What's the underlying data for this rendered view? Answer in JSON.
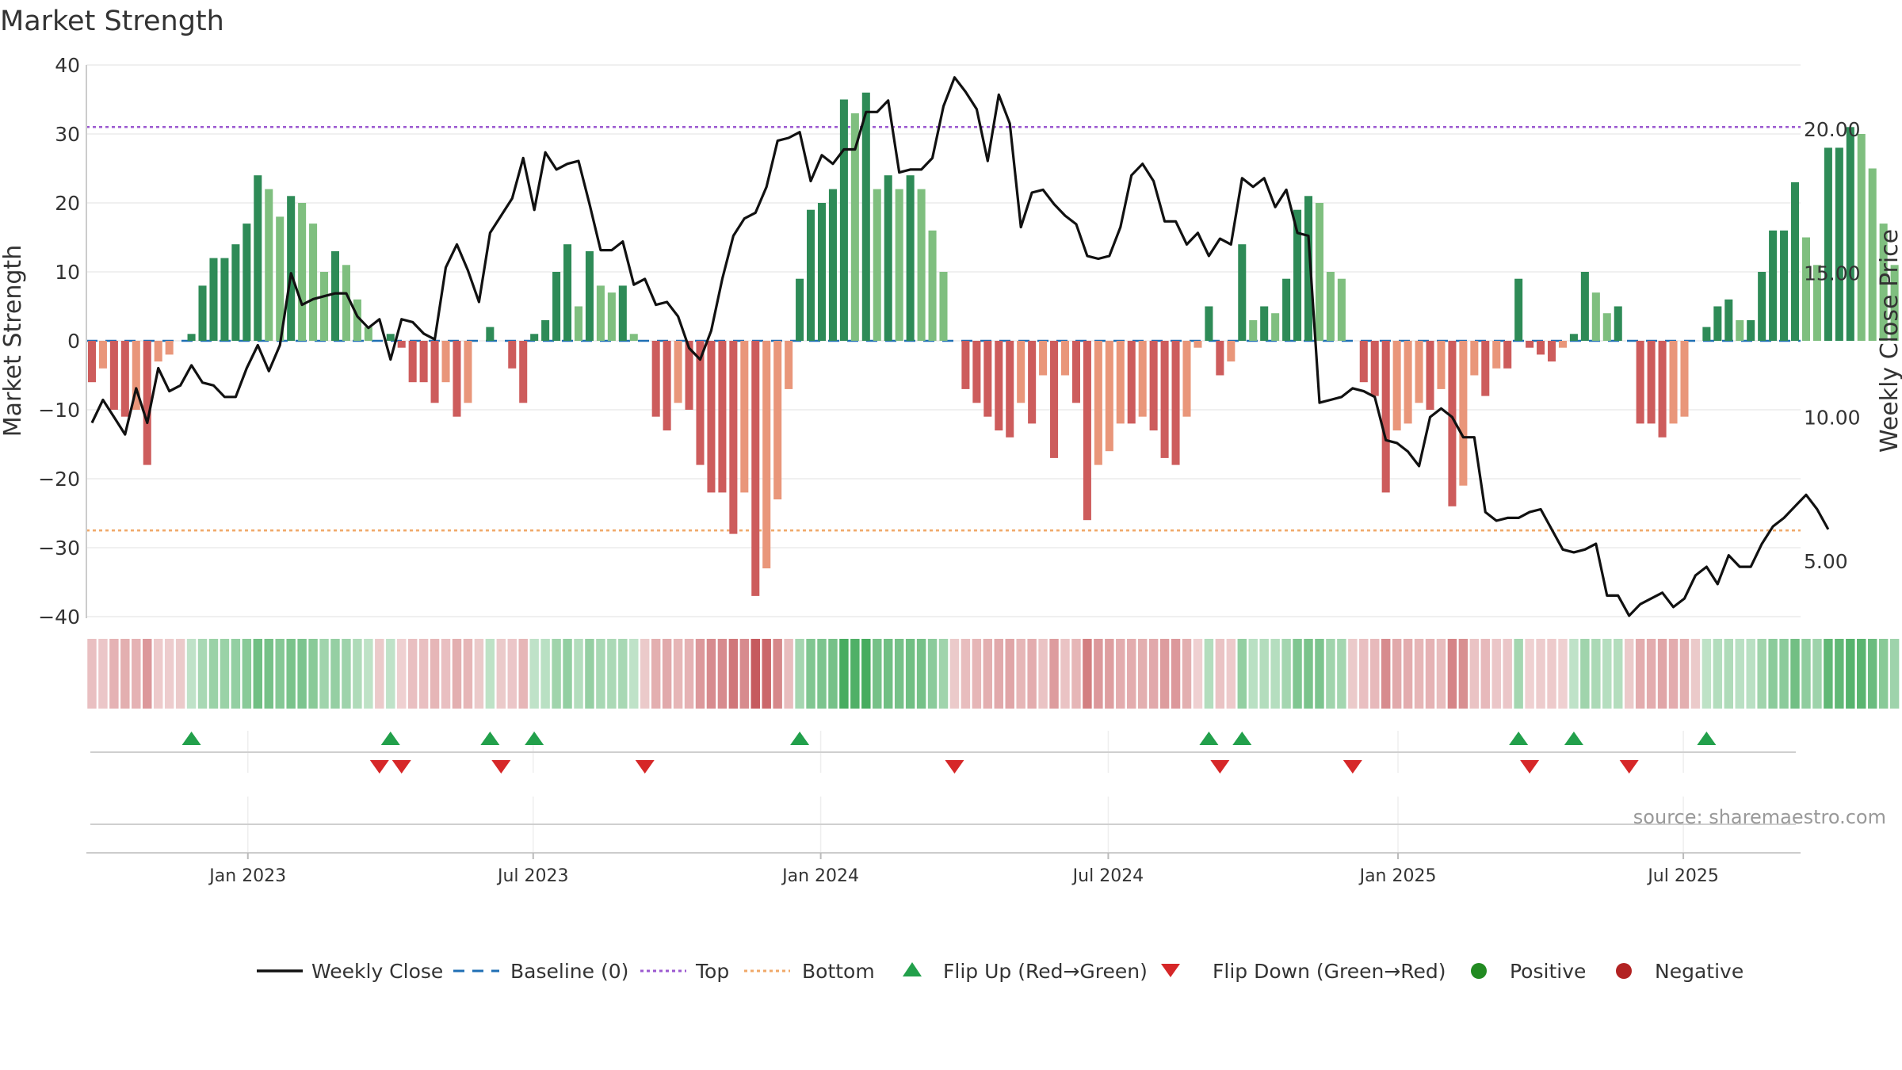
{
  "chart_data": {
    "type": "bar",
    "title": "Market Strength",
    "ylabel": "Market Strength",
    "ylabel_right": "Weekly Close Price",
    "ylim": [
      -40,
      40
    ],
    "ylim_right": [
      2.6,
      21.6
    ],
    "yticks": [
      "40",
      "30",
      "20",
      "10",
      "0",
      "−10",
      "−20",
      "−30",
      "−40"
    ],
    "yticks_right": [
      "20.00",
      "15.00",
      "10.00",
      "5.00"
    ],
    "x_range_weeks": [
      0,
      155
    ],
    "x_ticks": [
      {
        "label": "Jan 2023",
        "week": 14.6
      },
      {
        "label": "Jul 2023",
        "week": 40.4
      },
      {
        "label": "Jan 2024",
        "week": 66.4
      },
      {
        "label": "Jul 2024",
        "week": 92.4
      },
      {
        "label": "Jan 2025",
        "week": 118.6
      },
      {
        "label": "Jul 2025",
        "week": 144.4
      }
    ],
    "top_line": 31,
    "bottom_line": -27.5,
    "baseline": 0,
    "strength": [
      -6,
      -4,
      -10,
      -11,
      -10,
      -18,
      -3,
      -2,
      0,
      1,
      8,
      12,
      12,
      14,
      17,
      24,
      22,
      18,
      21,
      20,
      17,
      10,
      13,
      11,
      6,
      2,
      0,
      1,
      -1,
      -6,
      -6,
      -9,
      -6,
      -11,
      -9,
      0,
      2,
      0,
      -4,
      -9,
      1,
      3,
      10,
      14,
      5,
      13,
      8,
      7,
      8,
      1,
      0,
      -11,
      -13,
      -9,
      -10,
      -18,
      -22,
      -22,
      -28,
      -22,
      -37,
      -33,
      -23,
      -7,
      9,
      19,
      20,
      22,
      35,
      33,
      36,
      22,
      24,
      22,
      24,
      22,
      16,
      10,
      0,
      -7,
      -9,
      -11,
      -13,
      -14,
      -9,
      -12,
      -5,
      -17,
      -5,
      -9,
      -26,
      -18,
      -16,
      -12,
      -12,
      -11,
      -13,
      -17,
      -18,
      -11,
      -1,
      5,
      -5,
      -3,
      14,
      3,
      5,
      4,
      9,
      19,
      21,
      20,
      10,
      9,
      0,
      -6,
      -8,
      -22,
      -13,
      -12,
      -9,
      -10,
      -7,
      -24,
      -21,
      -5,
      -8,
      -4,
      -4,
      9,
      -1,
      -2,
      -3,
      -1,
      1,
      10,
      7,
      4,
      5,
      0,
      -12,
      -12,
      -14,
      -12,
      -11,
      0,
      2,
      5,
      6,
      3,
      3,
      10,
      16,
      16,
      23,
      15,
      11,
      28,
      28,
      31,
      30,
      25,
      17,
      11
    ],
    "weekly_close": [
      9.8,
      10.6,
      10.0,
      9.4,
      11.0,
      9.8,
      11.7,
      10.9,
      11.1,
      11.8,
      11.2,
      11.1,
      10.7,
      10.7,
      11.7,
      12.5,
      11.6,
      12.5,
      15.0,
      13.9,
      14.1,
      14.2,
      14.3,
      14.3,
      13.5,
      13.1,
      13.4,
      12.0,
      13.4,
      13.3,
      12.9,
      12.7,
      15.2,
      16.0,
      15.1,
      14.0,
      16.4,
      17.0,
      17.6,
      19.0,
      17.2,
      19.2,
      18.6,
      18.8,
      18.9,
      17.4,
      15.8,
      15.8,
      16.1,
      14.6,
      14.8,
      13.9,
      14.0,
      13.5,
      12.4,
      12.0,
      13.0,
      14.8,
      16.3,
      16.9,
      17.1,
      18.0,
      19.6,
      19.7,
      19.9,
      18.2,
      19.1,
      18.8,
      19.3,
      19.3,
      20.6,
      20.6,
      21.0,
      18.5,
      18.6,
      18.6,
      19.0,
      20.8,
      21.8,
      21.3,
      20.7,
      18.9,
      21.2,
      20.2,
      16.6,
      17.8,
      17.9,
      17.4,
      17.0,
      16.7,
      15.6,
      15.5,
      15.6,
      16.6,
      18.4,
      18.8,
      18.2,
      16.8,
      16.8,
      16.0,
      16.4,
      15.6,
      16.2,
      16.0,
      18.3,
      18.0,
      18.3,
      17.3,
      17.9,
      16.4,
      16.3,
      10.5,
      10.6,
      10.7,
      11.0,
      10.9,
      10.7,
      9.2,
      9.1,
      8.8,
      8.3,
      10.0,
      10.3,
      10.0,
      9.3,
      9.3,
      6.7,
      6.4,
      6.5,
      6.5,
      6.7,
      6.8,
      6.1,
      5.4,
      5.3,
      5.4,
      5.6,
      3.8,
      3.8,
      3.1,
      3.5,
      3.7,
      3.9,
      3.4,
      3.7,
      4.5,
      4.8,
      4.2,
      5.2,
      4.8,
      4.8,
      5.6,
      6.2,
      6.5,
      6.9,
      7.3,
      6.8,
      6.1
    ]
  },
  "legend": {
    "weekly_close": "Weekly Close",
    "baseline": "Baseline (0)",
    "top": "Top",
    "bottom": "Bottom",
    "flip_up": "Flip Up (Red→Green)",
    "flip_down": "Flip Down (Green→Red)",
    "positive": "Positive",
    "negative": "Negative"
  },
  "source": "source: sharemaestro.com",
  "colors": {
    "pos_strong": "#2e8b57",
    "pos_light": "#7fbf7f",
    "neg_strong": "#cd5c5c",
    "neg_light": "#e9967a",
    "line": "#111111",
    "top": "#9b59d0",
    "bottom": "#f0a868",
    "baseline": "#1f6fb4",
    "flip_up": "#22a04b",
    "flip_down": "#d62728",
    "dot_pos": "#228b22",
    "dot_neg": "#b22222"
  }
}
